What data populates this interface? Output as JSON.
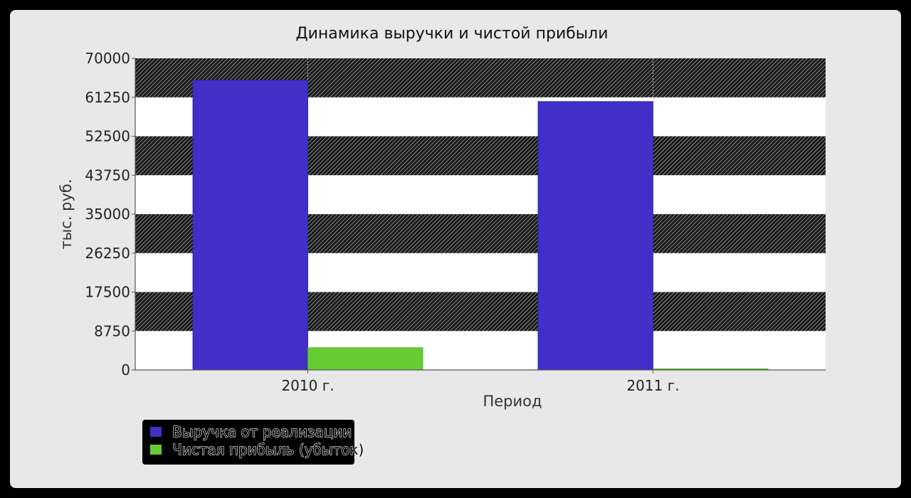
{
  "chart_data": {
    "type": "bar",
    "title": "Динамика выручки и чистой прибыли",
    "xlabel": "Период",
    "ylabel": "тыс. руб.",
    "categories": [
      "2010 г.",
      "2011 г."
    ],
    "ylim": [
      0,
      70000
    ],
    "yticks": [
      "0",
      "8750",
      "17500",
      "26250",
      "35000",
      "43750",
      "52500",
      "61250",
      "70000"
    ],
    "series": [
      {
        "name": "Выручка от реализации",
        "values": [
          65100,
          60300
        ],
        "color": "#4030c8"
      },
      {
        "name": "Чистая прибыль (убыток)",
        "values": [
          5000,
          250
        ],
        "color": "#66cc33"
      }
    ],
    "legend_position": "bottom-left",
    "grid": true,
    "band_colors": {
      "dark": "hatched-black",
      "light": "#ffffff"
    }
  }
}
